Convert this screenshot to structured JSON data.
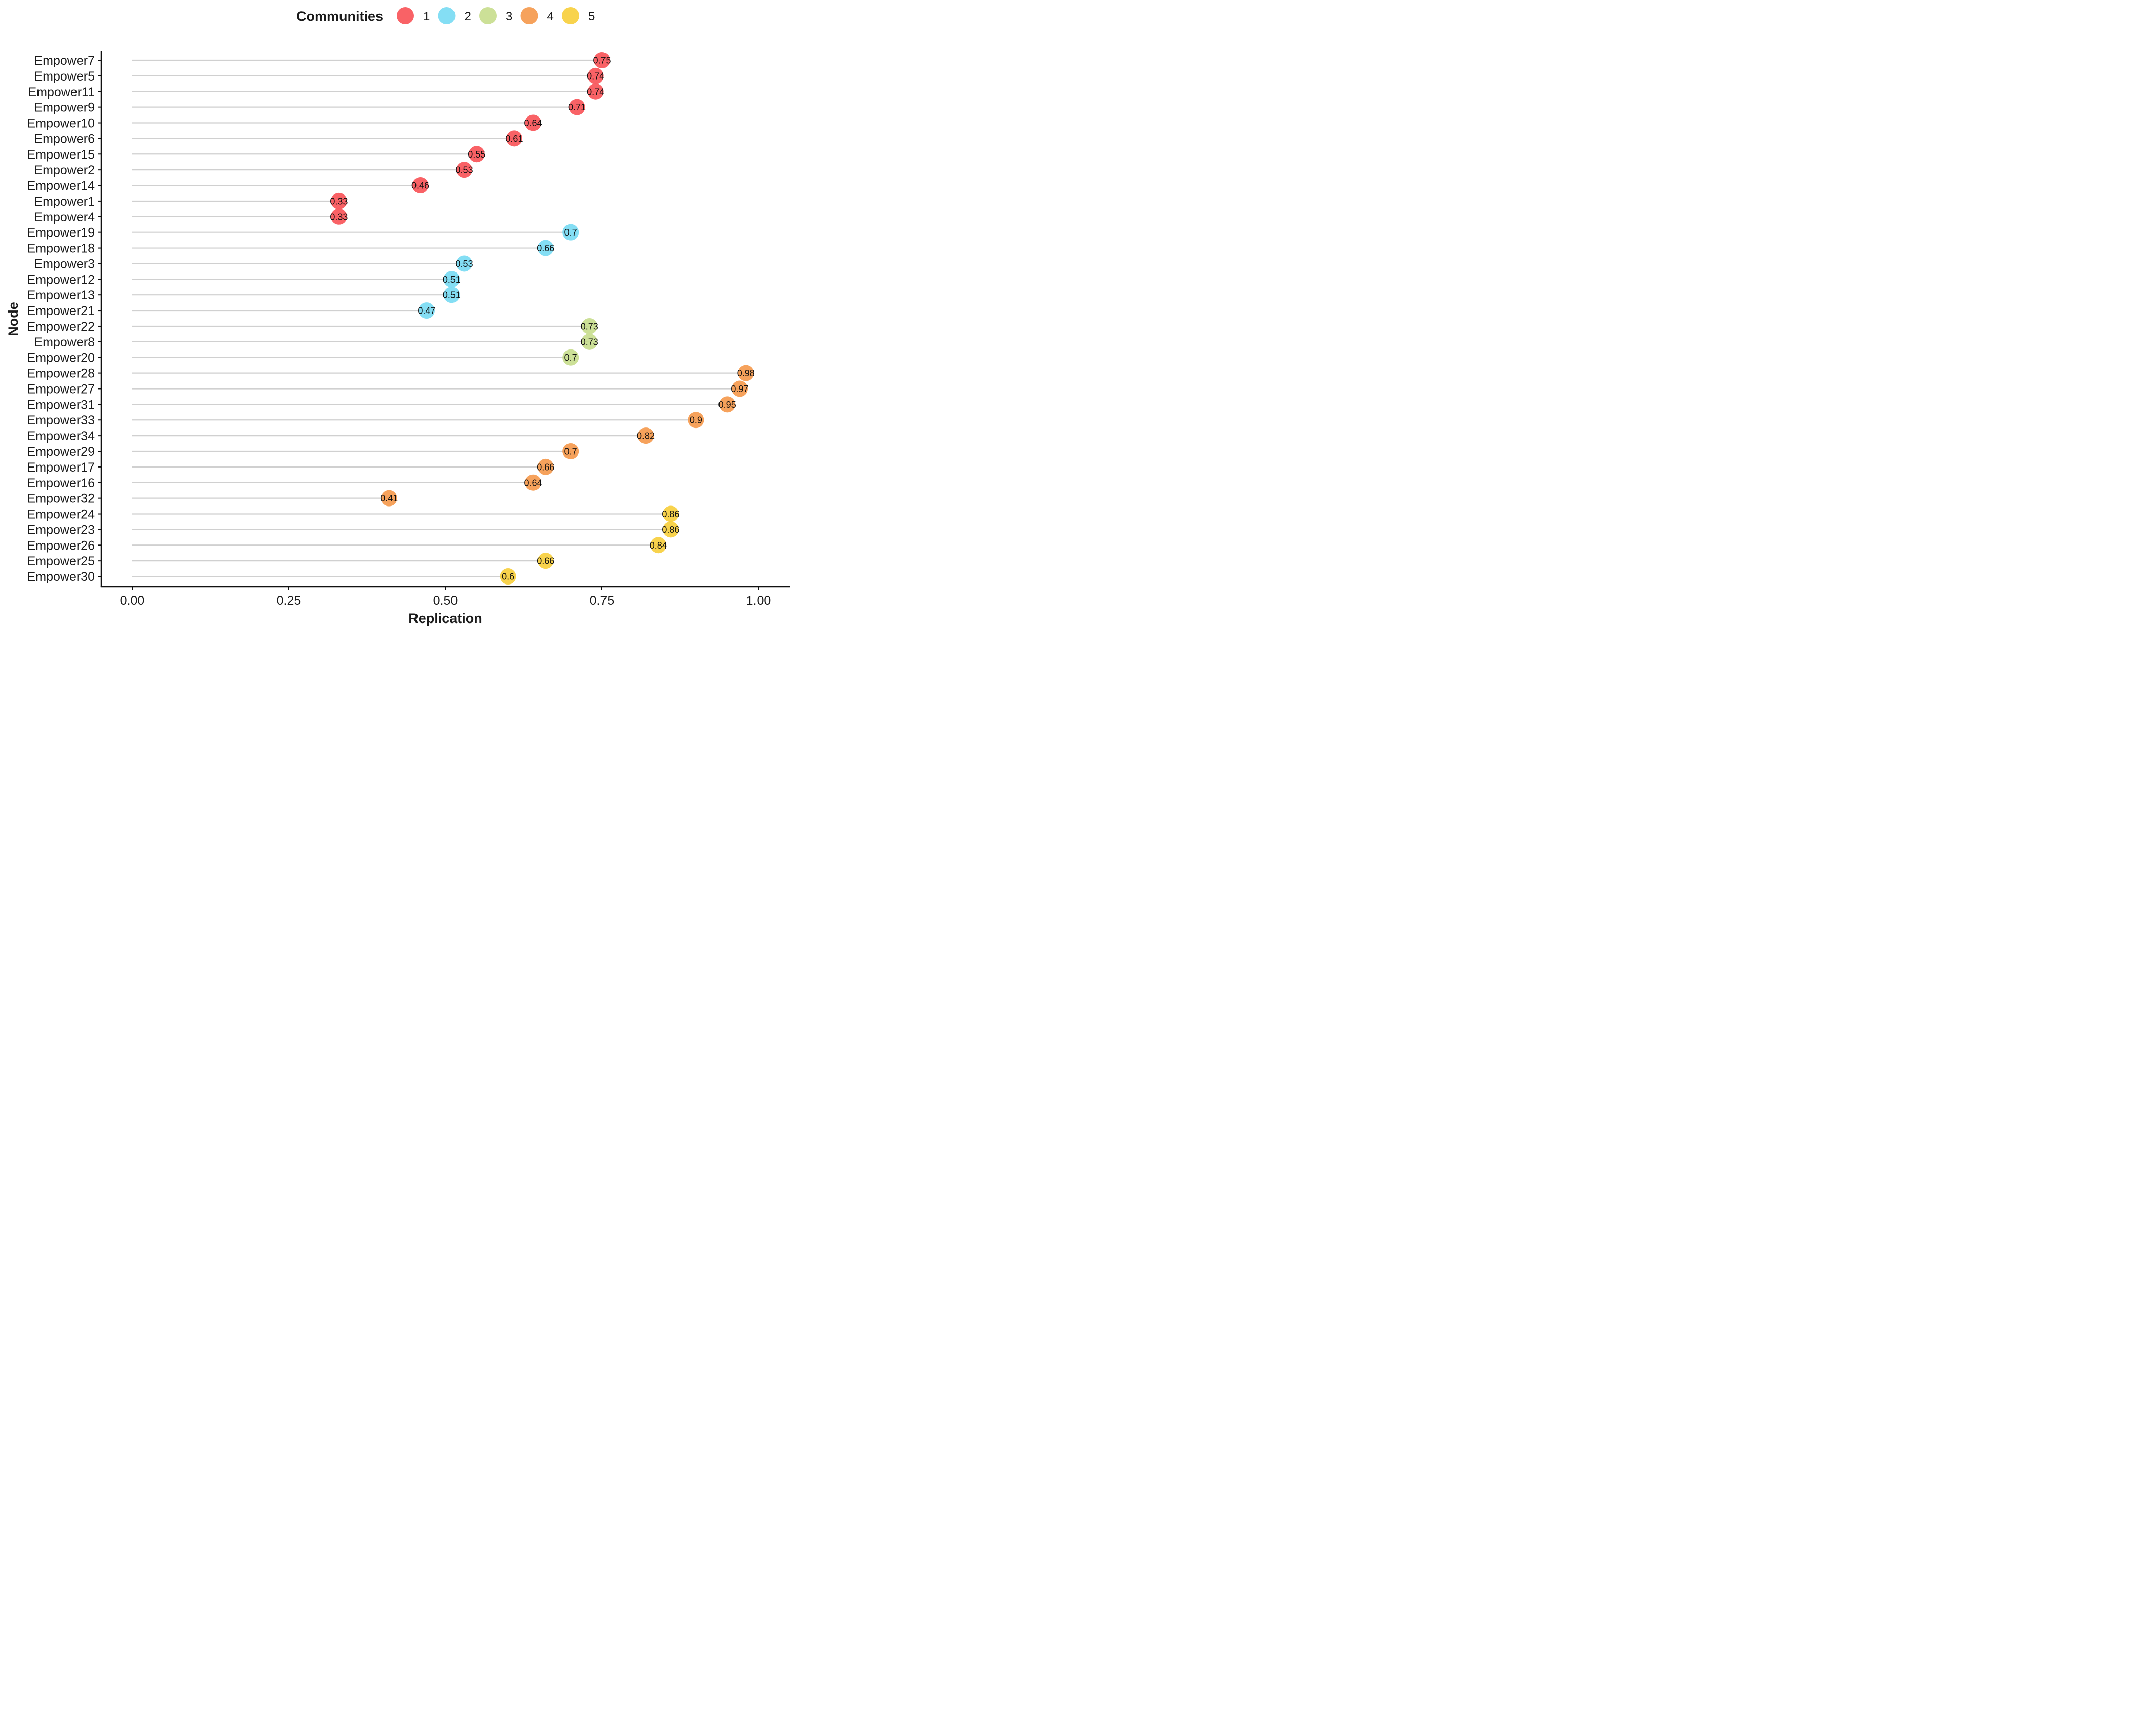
{
  "chart_data": {
    "type": "scatter",
    "xlabel": "Replication",
    "ylabel": "Node",
    "xlim": [
      0,
      1
    ],
    "x_ticks": [
      "0.00",
      "0.25",
      "0.50",
      "0.75",
      "1.00"
    ],
    "grid": false,
    "legend": {
      "title": "Communities",
      "placement": "top",
      "entries": [
        {
          "label": "1",
          "color": "#F8474B"
        },
        {
          "label": "2",
          "color": "#6ED8F2"
        },
        {
          "label": "3",
          "color": "#C3DA85"
        },
        {
          "label": "4",
          "color": "#F5923F"
        },
        {
          "label": "5",
          "color": "#F7CB2E"
        }
      ]
    },
    "points": [
      {
        "node": "Empower7",
        "value": 0.75,
        "label": "0.75",
        "community": "1"
      },
      {
        "node": "Empower5",
        "value": 0.74,
        "label": "0.74",
        "community": "1"
      },
      {
        "node": "Empower11",
        "value": 0.74,
        "label": "0.74",
        "community": "1"
      },
      {
        "node": "Empower9",
        "value": 0.71,
        "label": "0.71",
        "community": "1"
      },
      {
        "node": "Empower10",
        "value": 0.64,
        "label": "0.64",
        "community": "1"
      },
      {
        "node": "Empower6",
        "value": 0.61,
        "label": "0.61",
        "community": "1"
      },
      {
        "node": "Empower15",
        "value": 0.55,
        "label": "0.55",
        "community": "1"
      },
      {
        "node": "Empower2",
        "value": 0.53,
        "label": "0.53",
        "community": "1"
      },
      {
        "node": "Empower14",
        "value": 0.46,
        "label": "0.46",
        "community": "1"
      },
      {
        "node": "Empower1",
        "value": 0.33,
        "label": "0.33",
        "community": "1"
      },
      {
        "node": "Empower4",
        "value": 0.33,
        "label": "0.33",
        "community": "1"
      },
      {
        "node": "Empower19",
        "value": 0.7,
        "label": "0.7",
        "community": "2"
      },
      {
        "node": "Empower18",
        "value": 0.66,
        "label": "0.66",
        "community": "2"
      },
      {
        "node": "Empower3",
        "value": 0.53,
        "label": "0.53",
        "community": "2"
      },
      {
        "node": "Empower12",
        "value": 0.51,
        "label": "0.51",
        "community": "2"
      },
      {
        "node": "Empower13",
        "value": 0.51,
        "label": "0.51",
        "community": "2"
      },
      {
        "node": "Empower21",
        "value": 0.47,
        "label": "0.47",
        "community": "2"
      },
      {
        "node": "Empower22",
        "value": 0.73,
        "label": "0.73",
        "community": "3"
      },
      {
        "node": "Empower8",
        "value": 0.73,
        "label": "0.73",
        "community": "3"
      },
      {
        "node": "Empower20",
        "value": 0.7,
        "label": "0.7",
        "community": "3"
      },
      {
        "node": "Empower28",
        "value": 0.98,
        "label": "0.98",
        "community": "4"
      },
      {
        "node": "Empower27",
        "value": 0.97,
        "label": "0.97",
        "community": "4"
      },
      {
        "node": "Empower31",
        "value": 0.95,
        "label": "0.95",
        "community": "4"
      },
      {
        "node": "Empower33",
        "value": 0.9,
        "label": "0.9",
        "community": "4"
      },
      {
        "node": "Empower34",
        "value": 0.82,
        "label": "0.82",
        "community": "4"
      },
      {
        "node": "Empower29",
        "value": 0.7,
        "label": "0.7",
        "community": "4"
      },
      {
        "node": "Empower17",
        "value": 0.66,
        "label": "0.66",
        "community": "4"
      },
      {
        "node": "Empower16",
        "value": 0.64,
        "label": "0.64",
        "community": "4"
      },
      {
        "node": "Empower32",
        "value": 0.41,
        "label": "0.41",
        "community": "4"
      },
      {
        "node": "Empower24",
        "value": 0.86,
        "label": "0.86",
        "community": "5"
      },
      {
        "node": "Empower23",
        "value": 0.86,
        "label": "0.86",
        "community": "5"
      },
      {
        "node": "Empower26",
        "value": 0.84,
        "label": "0.84",
        "community": "5"
      },
      {
        "node": "Empower25",
        "value": 0.66,
        "label": "0.66",
        "community": "5"
      },
      {
        "node": "Empower30",
        "value": 0.6,
        "label": "0.6",
        "community": "5"
      }
    ]
  }
}
